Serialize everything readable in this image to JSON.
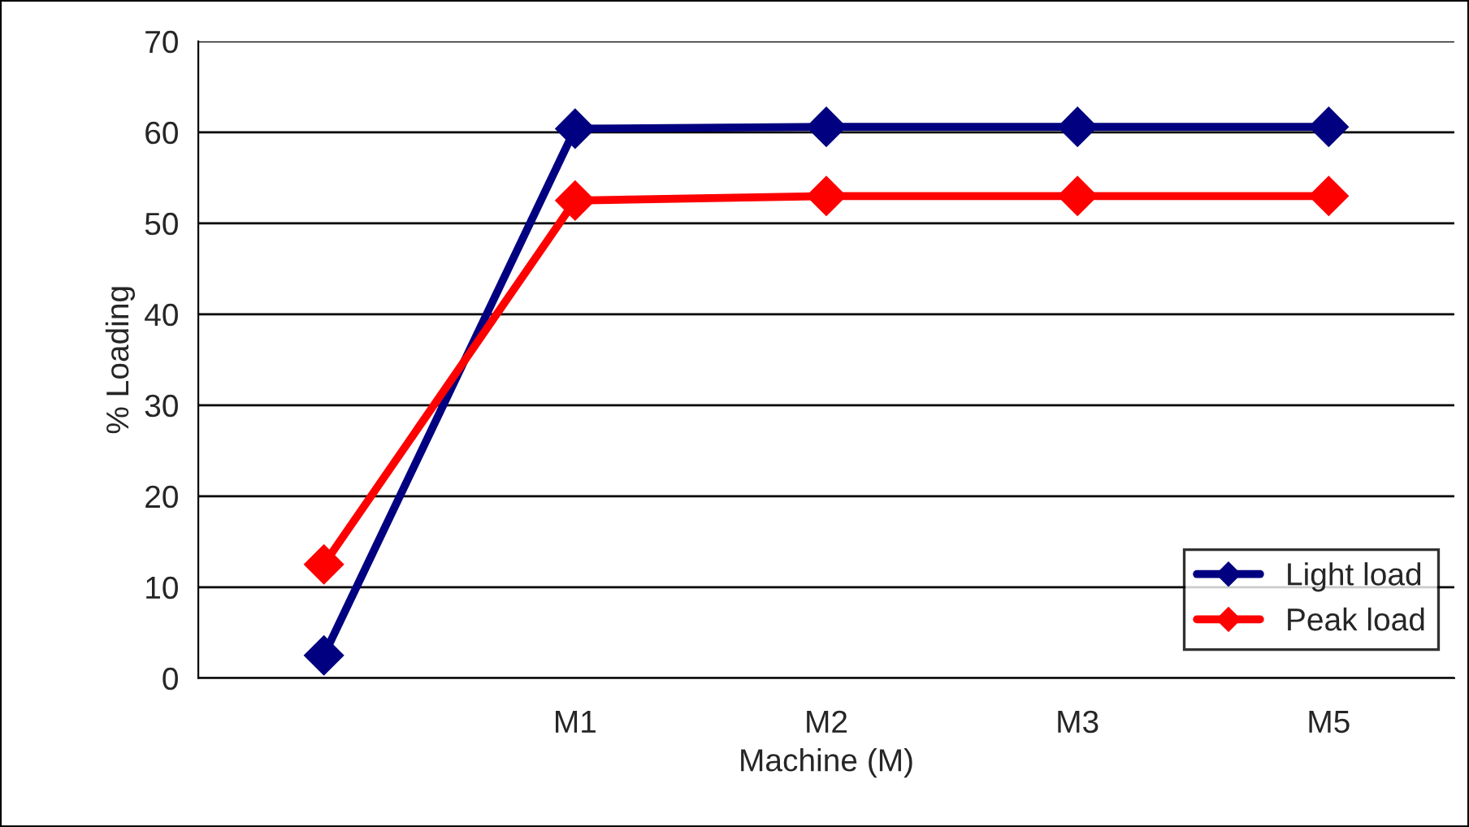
{
  "chart_data": {
    "type": "line",
    "xlabel": "Machine (M)",
    "ylabel": "% Loading",
    "categories": [
      null,
      "M1",
      "M2",
      "M3",
      "M5"
    ],
    "series": [
      {
        "name": "Light load",
        "color": "#000080",
        "values": [
          2.5,
          60.4,
          60.6,
          60.6,
          60.6
        ]
      },
      {
        "name": "Peak load",
        "color": "#ff0000",
        "values": [
          12.5,
          52.5,
          53,
          53,
          53
        ]
      }
    ],
    "ylim": [
      0,
      70
    ],
    "yticks": [
      0,
      10,
      20,
      30,
      40,
      50,
      60,
      70
    ],
    "grid": "y",
    "legend": "bottom right",
    "marker": "diamond",
    "line_style": "solid"
  }
}
